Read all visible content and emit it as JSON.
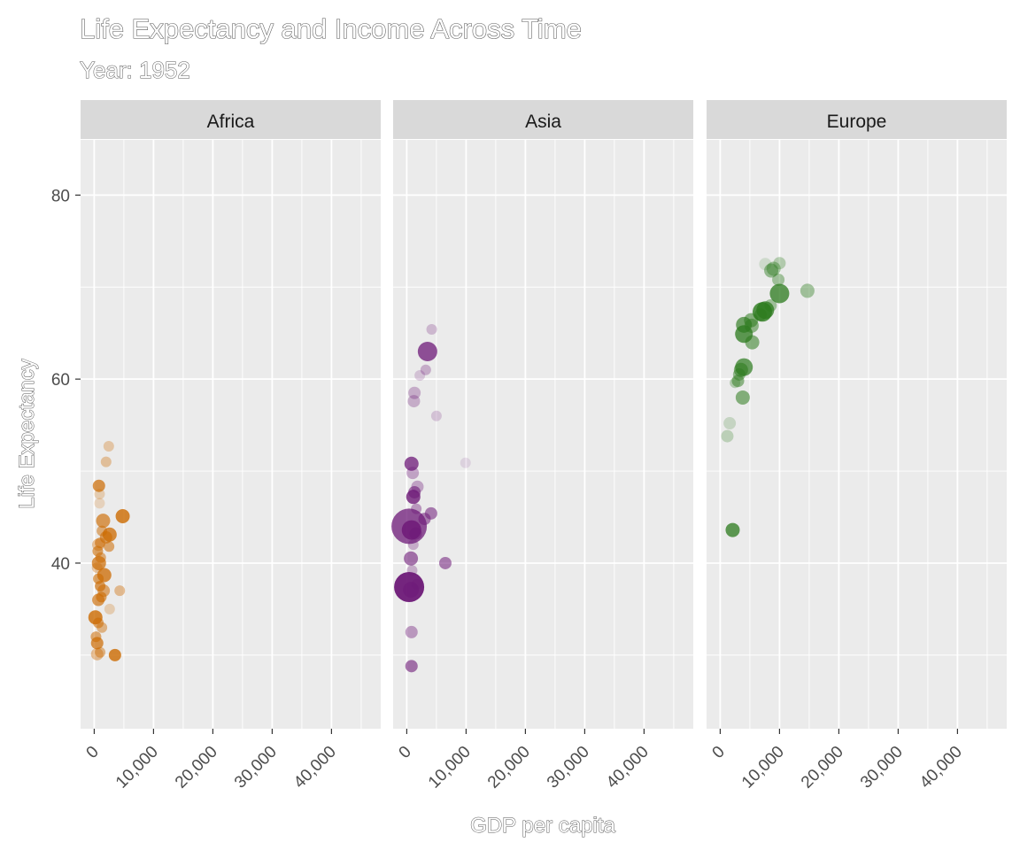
{
  "chart_data": {
    "type": "scatter",
    "title": "Life Expectancy and Income Across Time",
    "subtitle": "Year: 1952",
    "xlabel": "GDP per capita",
    "ylabel": "Life Expectancy",
    "xlim": [
      -2300,
      48300
    ],
    "ylim": [
      22,
      86
    ],
    "x_ticks": [
      0,
      10000,
      20000,
      30000,
      40000
    ],
    "x_tick_labels": [
      "0",
      "10,000",
      "20,000",
      "30,000",
      "40,000"
    ],
    "y_ticks": [
      40,
      60,
      80
    ],
    "y_tick_labels": [
      "40",
      "60",
      "80"
    ],
    "grid": true,
    "legend": "none",
    "facets": [
      {
        "name": "Africa",
        "color": "#cc6a00",
        "points": [
          {
            "x": 2450,
            "y": 52.7,
            "s": 6,
            "o": 0.3
          },
          {
            "x": 2000,
            "y": 51.0,
            "s": 6,
            "o": 0.35
          },
          {
            "x": 800,
            "y": 48.4,
            "s": 7,
            "o": 0.7
          },
          {
            "x": 900,
            "y": 47.5,
            "s": 6,
            "o": 0.25
          },
          {
            "x": 900,
            "y": 46.5,
            "s": 6,
            "o": 0.2
          },
          {
            "x": 4800,
            "y": 45.1,
            "s": 8,
            "o": 0.8
          },
          {
            "x": 1500,
            "y": 44.6,
            "s": 8,
            "o": 0.65
          },
          {
            "x": 1300,
            "y": 43.5,
            "s": 6,
            "o": 0.5
          },
          {
            "x": 2600,
            "y": 43.1,
            "s": 8,
            "o": 0.75
          },
          {
            "x": 2000,
            "y": 42.8,
            "s": 7,
            "o": 0.6
          },
          {
            "x": 1000,
            "y": 42.2,
            "s": 6,
            "o": 0.55
          },
          {
            "x": 700,
            "y": 42.0,
            "s": 7,
            "o": 0.4
          },
          {
            "x": 2500,
            "y": 41.8,
            "s": 6,
            "o": 0.55
          },
          {
            "x": 600,
            "y": 41.3,
            "s": 6,
            "o": 0.6
          },
          {
            "x": 1100,
            "y": 40.6,
            "s": 6,
            "o": 0.5
          },
          {
            "x": 800,
            "y": 40.0,
            "s": 8,
            "o": 0.7
          },
          {
            "x": 500,
            "y": 39.5,
            "s": 6,
            "o": 0.35
          },
          {
            "x": 1700,
            "y": 38.7,
            "s": 8,
            "o": 0.75
          },
          {
            "x": 700,
            "y": 38.3,
            "s": 6,
            "o": 0.6
          },
          {
            "x": 1000,
            "y": 37.5,
            "s": 6,
            "o": 0.65
          },
          {
            "x": 1600,
            "y": 37.0,
            "s": 7,
            "o": 0.55
          },
          {
            "x": 4300,
            "y": 37.0,
            "s": 6,
            "o": 0.4
          },
          {
            "x": 1200,
            "y": 36.3,
            "s": 6,
            "o": 0.6
          },
          {
            "x": 700,
            "y": 36.0,
            "s": 7,
            "o": 0.65
          },
          {
            "x": 2600,
            "y": 35.0,
            "s": 6,
            "o": 0.25
          },
          {
            "x": 200,
            "y": 34.1,
            "s": 8,
            "o": 0.8
          },
          {
            "x": 700,
            "y": 33.5,
            "s": 6,
            "o": 0.55
          },
          {
            "x": 1300,
            "y": 33.0,
            "s": 6,
            "o": 0.45
          },
          {
            "x": 300,
            "y": 32.0,
            "s": 6,
            "o": 0.55
          },
          {
            "x": 500,
            "y": 31.3,
            "s": 7,
            "o": 0.7
          },
          {
            "x": 500,
            "y": 30.1,
            "s": 7,
            "o": 0.4
          },
          {
            "x": 3500,
            "y": 30.0,
            "s": 7,
            "o": 0.8
          },
          {
            "x": 1000,
            "y": 30.3,
            "s": 6,
            "o": 0.45
          }
        ]
      },
      {
        "name": "Asia",
        "color": "#6e1a78",
        "points": [
          {
            "x": 4200,
            "y": 65.4,
            "s": 6,
            "o": 0.25
          },
          {
            "x": 3500,
            "y": 63.0,
            "s": 11,
            "o": 0.75
          },
          {
            "x": 3200,
            "y": 61.0,
            "s": 6,
            "o": 0.3
          },
          {
            "x": 2200,
            "y": 60.4,
            "s": 6,
            "o": 0.2
          },
          {
            "x": 1300,
            "y": 58.5,
            "s": 7,
            "o": 0.3
          },
          {
            "x": 1200,
            "y": 57.6,
            "s": 7,
            "o": 0.3
          },
          {
            "x": 5000,
            "y": 56.0,
            "s": 6,
            "o": 0.2
          },
          {
            "x": 9900,
            "y": 50.9,
            "s": 6,
            "o": 0.12
          },
          {
            "x": 800,
            "y": 50.8,
            "s": 8,
            "o": 0.75
          },
          {
            "x": 1000,
            "y": 49.8,
            "s": 7,
            "o": 0.35
          },
          {
            "x": 1800,
            "y": 48.3,
            "s": 7,
            "o": 0.35
          },
          {
            "x": 1300,
            "y": 47.7,
            "s": 7,
            "o": 0.6
          },
          {
            "x": 1100,
            "y": 47.2,
            "s": 8,
            "o": 0.8
          },
          {
            "x": 1600,
            "y": 45.9,
            "s": 6,
            "o": 0.4
          },
          {
            "x": 4100,
            "y": 45.4,
            "s": 7,
            "o": 0.55
          },
          {
            "x": 3000,
            "y": 44.8,
            "s": 7,
            "o": 0.55
          },
          {
            "x": 400,
            "y": 44.0,
            "s": 20,
            "o": 0.75
          },
          {
            "x": 800,
            "y": 43.6,
            "s": 11,
            "o": 0.85
          },
          {
            "x": 1500,
            "y": 43.2,
            "s": 7,
            "o": 0.5
          },
          {
            "x": 1100,
            "y": 42.0,
            "s": 6,
            "o": 0.3
          },
          {
            "x": 700,
            "y": 40.5,
            "s": 8,
            "o": 0.6
          },
          {
            "x": 6500,
            "y": 40.0,
            "s": 7,
            "o": 0.55
          },
          {
            "x": 900,
            "y": 39.2,
            "s": 6,
            "o": 0.3
          },
          {
            "x": 400,
            "y": 37.4,
            "s": 17,
            "o": 0.95
          },
          {
            "x": 700,
            "y": 37.1,
            "s": 9,
            "o": 0.55
          },
          {
            "x": 1700,
            "y": 37.7,
            "s": 6,
            "o": 0.3
          },
          {
            "x": 800,
            "y": 32.5,
            "s": 7,
            "o": 0.4
          },
          {
            "x": 800,
            "y": 28.8,
            "s": 7,
            "o": 0.6
          }
        ]
      },
      {
        "name": "Europe",
        "color": "#2b7a1c",
        "points": [
          {
            "x": 7600,
            "y": 72.5,
            "s": 7,
            "o": 0.15
          },
          {
            "x": 10000,
            "y": 72.6,
            "s": 7,
            "o": 0.3
          },
          {
            "x": 9000,
            "y": 72.0,
            "s": 8,
            "o": 0.4
          },
          {
            "x": 8600,
            "y": 71.8,
            "s": 8,
            "o": 0.45
          },
          {
            "x": 9800,
            "y": 70.8,
            "s": 7,
            "o": 0.4
          },
          {
            "x": 14700,
            "y": 69.6,
            "s": 8,
            "o": 0.4
          },
          {
            "x": 10000,
            "y": 69.3,
            "s": 11,
            "o": 0.75
          },
          {
            "x": 8500,
            "y": 68.0,
            "s": 7,
            "o": 0.4
          },
          {
            "x": 7600,
            "y": 67.5,
            "s": 10,
            "o": 0.75
          },
          {
            "x": 7100,
            "y": 67.3,
            "s": 11,
            "o": 0.8
          },
          {
            "x": 6800,
            "y": 67.0,
            "s": 7,
            "o": 0.5
          },
          {
            "x": 5200,
            "y": 66.4,
            "s": 8,
            "o": 0.55
          },
          {
            "x": 4000,
            "y": 65.9,
            "s": 9,
            "o": 0.65
          },
          {
            "x": 5300,
            "y": 65.8,
            "s": 8,
            "o": 0.5
          },
          {
            "x": 4000,
            "y": 64.9,
            "s": 10,
            "o": 0.75
          },
          {
            "x": 5400,
            "y": 64.0,
            "s": 8,
            "o": 0.55
          },
          {
            "x": 4000,
            "y": 61.3,
            "s": 10,
            "o": 0.7
          },
          {
            "x": 3500,
            "y": 61.0,
            "s": 8,
            "o": 0.55
          },
          {
            "x": 3200,
            "y": 60.5,
            "s": 7,
            "o": 0.45
          },
          {
            "x": 3800,
            "y": 58.0,
            "s": 8,
            "o": 0.55
          },
          {
            "x": 3000,
            "y": 59.8,
            "s": 7,
            "o": 0.5
          },
          {
            "x": 2500,
            "y": 59.6,
            "s": 6,
            "o": 0.3
          },
          {
            "x": 1600,
            "y": 55.2,
            "s": 7,
            "o": 0.2
          },
          {
            "x": 1200,
            "y": 53.8,
            "s": 7,
            "o": 0.25
          },
          {
            "x": 2100,
            "y": 43.6,
            "s": 8,
            "o": 0.75
          }
        ]
      }
    ]
  }
}
